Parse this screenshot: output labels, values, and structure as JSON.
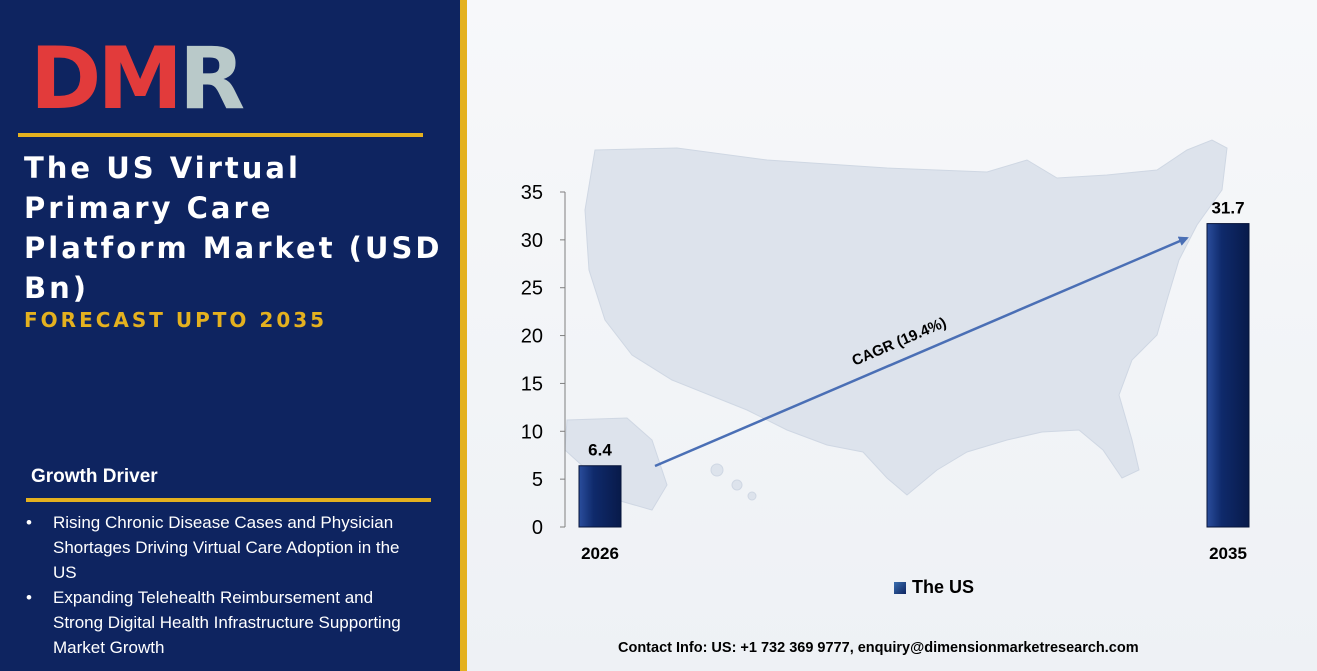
{
  "brand": {
    "logo_text": "DMR",
    "logo_letters": [
      "D",
      "M",
      "R"
    ]
  },
  "panel": {
    "title": "The US Virtual Primary Care Platform Market (USD Bn)",
    "subtitle": "FORECAST UPTO 2035",
    "growth_driver_title": "Growth Driver",
    "drivers": [
      "Rising Chronic Disease Cases and Physician Shortages Driving Virtual Care Adoption in the US",
      "Expanding Telehealth Reimbursement and Strong Digital Health Infrastructure Supporting Market Growth"
    ]
  },
  "contact": "Contact Info: US: +1 732 369 9777, enquiry@dimensionmarketresearch.com",
  "colors": {
    "navy": "#0e2460",
    "gold": "#e4b11f",
    "bar": "#0f2a6b",
    "arrow": "#4a6fb5",
    "logo_red": "#e23b3b",
    "logo_grey": "#b9c9c9"
  },
  "chart_data": {
    "type": "bar",
    "categories": [
      "2026",
      "2035"
    ],
    "series": [
      {
        "name": "The US",
        "values": [
          6.4,
          31.7
        ]
      }
    ],
    "data_labels": [
      "6.4",
      "31.7"
    ],
    "ylim": [
      0,
      35
    ],
    "yticks": [
      "0",
      "5",
      "10",
      "15",
      "20",
      "25",
      "30",
      "35"
    ],
    "annotation": "CAGR (19.4%)",
    "legend_position": "bottom",
    "grid": false,
    "background_image": "us-map"
  }
}
